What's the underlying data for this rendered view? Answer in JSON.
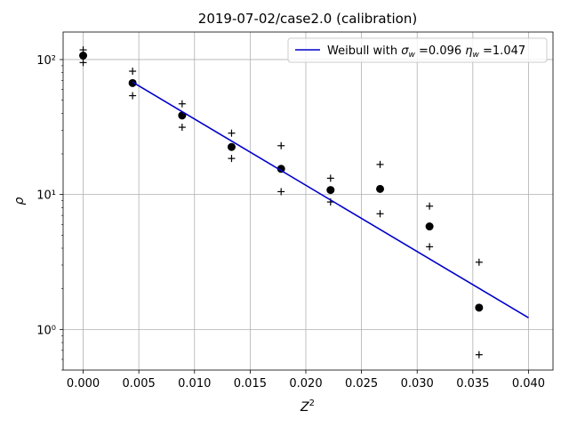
{
  "chart_data": {
    "type": "scatter",
    "title": "2019-07-02/case2.0 (calibration)",
    "xlabel": "Z",
    "xlabel_sup": "2",
    "ylabel": "ρ",
    "xlim": [
      -0.0018,
      0.0422
    ],
    "ylim": [
      0.5,
      160
    ],
    "yscale": "log",
    "grid": true,
    "legend_placement": "top-right",
    "x_ticks": [
      0.0,
      0.005,
      0.01,
      0.015,
      0.02,
      0.025,
      0.03,
      0.035,
      0.04
    ],
    "x_tick_labels": [
      "0.000",
      "0.005",
      "0.010",
      "0.015",
      "0.020",
      "0.025",
      "0.030",
      "0.035",
      "0.040"
    ],
    "y_ticks": [
      1,
      10,
      100
    ],
    "y_tick_labels": [
      "10⁰",
      "10¹",
      "10²"
    ],
    "series": [
      {
        "kind": "points",
        "marker": "circle",
        "color": "#000000",
        "x": [
          0.0,
          0.00444,
          0.00889,
          0.01333,
          0.01778,
          0.02222,
          0.02667,
          0.03111,
          0.03556
        ],
        "y": [
          107,
          67,
          38.5,
          22.5,
          15.5,
          10.8,
          11.0,
          5.8,
          1.45
        ]
      },
      {
        "kind": "upper",
        "marker": "plus",
        "color": "#000000",
        "x": [
          0.0,
          0.00444,
          0.00889,
          0.01333,
          0.01778,
          0.02222,
          0.02667,
          0.03111,
          0.03556
        ],
        "y": [
          118,
          82,
          47,
          28.5,
          23,
          13.2,
          16.7,
          8.2,
          3.15
        ]
      },
      {
        "kind": "lower",
        "marker": "plus",
        "color": "#000000",
        "x": [
          0.0,
          0.00444,
          0.00889,
          0.01333,
          0.01778,
          0.02222,
          0.02667,
          0.03111,
          0.03556
        ],
        "y": [
          95,
          54,
          31.5,
          18.5,
          10.5,
          8.8,
          7.2,
          4.1,
          0.65
        ]
      },
      {
        "kind": "line",
        "color": "#0000cc",
        "x": [
          0.00444,
          0.04
        ],
        "y": [
          68,
          1.22
        ]
      }
    ],
    "legend": [
      {
        "color": "#0000cc",
        "text_prefix": "Weibull with ",
        "sigma_sym": "σ",
        "sigma_sub": "w",
        "sigma_val": " =0.096 ",
        "eta_sym": "η",
        "eta_sub": "w",
        "eta_val": " =1.047"
      }
    ]
  }
}
